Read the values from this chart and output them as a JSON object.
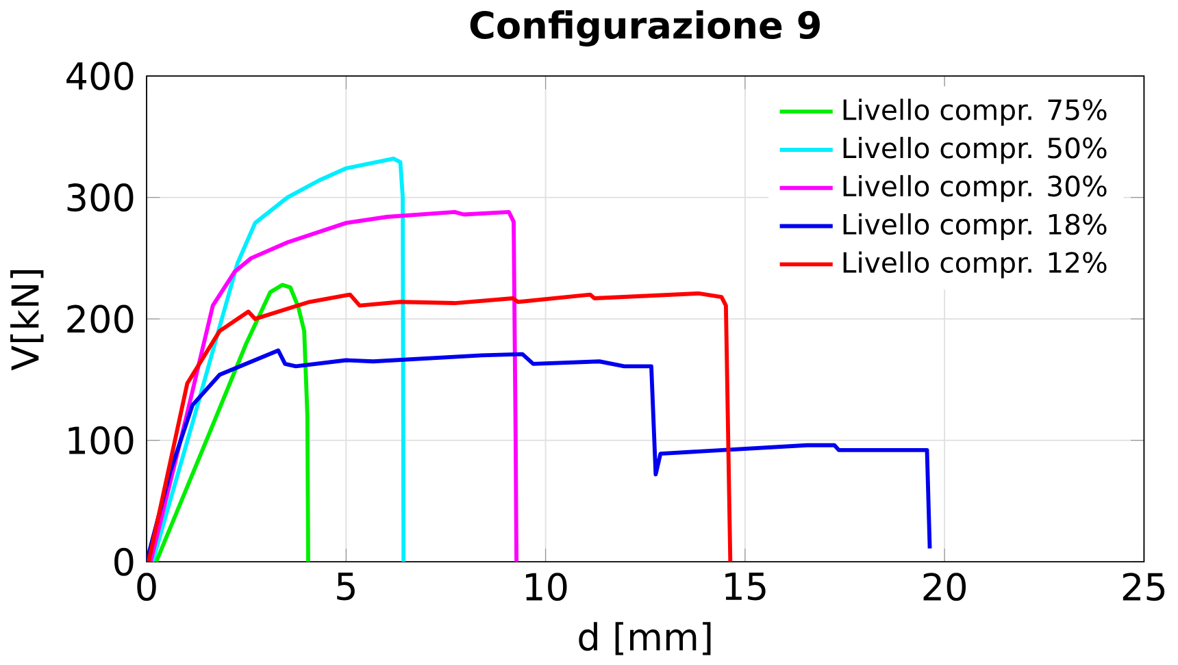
{
  "chart_data": {
    "type": "line",
    "title": "Configurazione 9",
    "xlabel": "d [mm]",
    "ylabel": "V[kN]",
    "xlim": [
      0,
      25
    ],
    "ylim": [
      0,
      400
    ],
    "xticks": [
      0,
      5,
      10,
      15,
      20,
      25
    ],
    "yticks": [
      0,
      100,
      200,
      300,
      400
    ],
    "grid": true,
    "legend": "top right",
    "line_style": "solid",
    "marker": "none",
    "series": [
      {
        "name": "Livello compr. 75%",
        "color": "#00ee00",
        "x": [
          0.24,
          1.5,
          2.5,
          3.1,
          3.4,
          3.6,
          3.8,
          3.95,
          4.03,
          4.05
        ],
        "values": [
          0,
          100,
          180,
          222,
          228,
          226,
          210,
          190,
          120,
          0
        ]
      },
      {
        "name": "Livello compr. 50%",
        "color": "#00eeff",
        "x": [
          0.15,
          1.2,
          2.28,
          2.72,
          3.53,
          4.32,
          5.0,
          6.19,
          6.36,
          6.42,
          6.44
        ],
        "values": [
          0,
          120,
          246,
          279,
          300,
          314,
          324,
          332,
          329,
          300,
          0
        ]
      },
      {
        "name": "Livello compr. 30%",
        "color": "#ff00ff",
        "x": [
          0.1,
          1.0,
          1.66,
          2.21,
          2.62,
          3.53,
          5.0,
          6.02,
          7.72,
          7.95,
          9.08,
          9.2,
          9.25,
          9.27
        ],
        "values": [
          0,
          120,
          211,
          239,
          250,
          263,
          279,
          284,
          288,
          286,
          288,
          280,
          100,
          0
        ]
      },
      {
        "name": "Livello compr. 18%",
        "color": "#0000ee",
        "x": [
          0,
          0.6,
          1.15,
          1.83,
          3.3,
          3.47,
          3.74,
          5.0,
          5.68,
          8.4,
          9.42,
          9.69,
          11.35,
          11.97,
          12.65,
          12.76,
          12.88,
          16.56,
          17.24,
          17.35,
          19.56,
          19.63
        ],
        "values": [
          0,
          75,
          129,
          154,
          174,
          163,
          161,
          166,
          165,
          170,
          171,
          163,
          165,
          161,
          161,
          72,
          89,
          96,
          96,
          92,
          92,
          11
        ]
      },
      {
        "name": "Livello compr. 12%",
        "color": "#ff0000",
        "x": [
          0.05,
          1.02,
          1.83,
          2.55,
          2.72,
          4.08,
          5.1,
          5.34,
          6.36,
          7.72,
          9.18,
          9.31,
          11.12,
          11.22,
          13.84,
          14.41,
          14.52,
          14.63
        ],
        "values": [
          0,
          147,
          190,
          206,
          200,
          214,
          220,
          211,
          214,
          213,
          217,
          214,
          220,
          217,
          221,
          218,
          211,
          0
        ]
      }
    ]
  }
}
